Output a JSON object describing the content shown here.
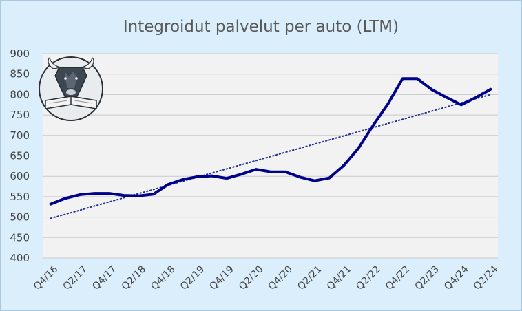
{
  "chart_data": {
    "type": "line",
    "title": "Integroidut palvelut per auto (LTM)",
    "xlabel": "",
    "ylabel": "",
    "ylim": [
      400,
      900
    ],
    "yticks": [
      400,
      450,
      500,
      550,
      600,
      650,
      700,
      750,
      800,
      850,
      900
    ],
    "x": [
      "Q4/16",
      "Q1/17",
      "Q2/17",
      "Q3/17",
      "Q4/17",
      "Q1/18",
      "Q2/18",
      "Q3/18",
      "Q4/18",
      "Q1/19",
      "Q2/19",
      "Q3/19",
      "Q4/19",
      "Q1/20",
      "Q2/20",
      "Q3/20",
      "Q4/20",
      "Q1/21",
      "Q2/21",
      "Q3/21",
      "Q4/21",
      "Q1/22",
      "Q2/22",
      "Q3/22",
      "Q4/22",
      "Q1/23",
      "Q2/23",
      "Q3/23",
      "Q4/24",
      "Q1/24",
      "Q2/24"
    ],
    "xtick_labels": [
      "Q4/16",
      "Q2/17",
      "Q4/17",
      "Q2/18",
      "Q4/18",
      "Q2/19",
      "Q4/19",
      "Q2/20",
      "Q4/20",
      "Q2/21",
      "Q4/21",
      "Q2/22",
      "Q4/22",
      "Q2/23",
      "Q4/24",
      "Q2/24"
    ],
    "series": [
      {
        "values": [
          532,
          546,
          555,
          558,
          558,
          553,
          552,
          556,
          580,
          592,
          599,
          601,
          595,
          605,
          617,
          611,
          611,
          598,
          589,
          596,
          627,
          669,
          725,
          777,
          839,
          839,
          812,
          793,
          775,
          793,
          813
        ],
        "color": "#00008b"
      }
    ],
    "trendline": {
      "style": "dotted",
      "start": 497,
      "end": 800,
      "color": "#1f2f8f"
    },
    "grid": true,
    "legend": "none",
    "plot_background": "#f2f2f2",
    "background": "#dbeefb"
  },
  "logo": {
    "icon": "bull-reading-book-icon"
  }
}
